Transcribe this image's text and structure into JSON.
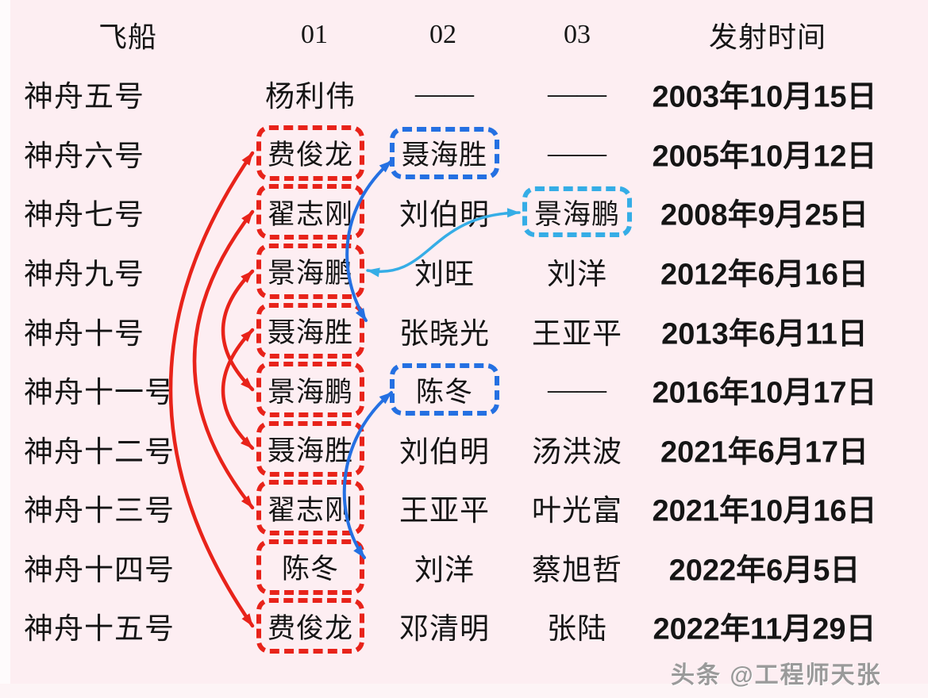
{
  "page": {
    "background": "#fdeef2",
    "watermark": "头条 @工程师天张"
  },
  "colors": {
    "red": "#e8231a",
    "blue": "#2470e2",
    "cyan": "#35ade6",
    "text": "#151515",
    "watermark_gray": "#9a9a9a"
  },
  "table": {
    "headers": [
      {
        "label": "飞船"
      },
      {
        "label": "01"
      },
      {
        "label": "02"
      },
      {
        "label": "03"
      },
      {
        "label": "发射时间"
      }
    ],
    "rows": [
      {
        "ship": "神舟五号",
        "c1": {
          "text": "杨利伟",
          "box": null
        },
        "c2": {
          "text": "——",
          "box": null
        },
        "c3": {
          "text": "——",
          "box": null
        },
        "date": "2003年10月15日"
      },
      {
        "ship": "神舟六号",
        "c1": {
          "text": "费俊龙",
          "box": "red"
        },
        "c2": {
          "text": "聂海胜",
          "box": "blue"
        },
        "c3": {
          "text": "——",
          "box": null
        },
        "date": "2005年10月12日"
      },
      {
        "ship": "神舟七号",
        "c1": {
          "text": "翟志刚",
          "box": "red"
        },
        "c2": {
          "text": "刘伯明",
          "box": null
        },
        "c3": {
          "text": "景海鹏",
          "box": "cyan"
        },
        "date": "2008年9月25日"
      },
      {
        "ship": "神舟九号",
        "c1": {
          "text": "景海鹏",
          "box": "red"
        },
        "c2": {
          "text": "刘旺",
          "box": null
        },
        "c3": {
          "text": "刘洋",
          "box": null
        },
        "date": "2012年6月16日"
      },
      {
        "ship": "神舟十号",
        "c1": {
          "text": "聂海胜",
          "box": "red"
        },
        "c2": {
          "text": "张晓光",
          "box": null
        },
        "c3": {
          "text": "王亚平",
          "box": null
        },
        "date": "2013年6月11日"
      },
      {
        "ship": "神舟十一号",
        "c1": {
          "text": "景海鹏",
          "box": "red"
        },
        "c2": {
          "text": "陈冬",
          "box": "blue"
        },
        "c3": {
          "text": "——",
          "box": null
        },
        "date": "2016年10月17日"
      },
      {
        "ship": "神舟十二号",
        "c1": {
          "text": "聂海胜",
          "box": "red"
        },
        "c2": {
          "text": "刘伯明",
          "box": null
        },
        "c3": {
          "text": "汤洪波",
          "box": null
        },
        "date": "2021年6月17日"
      },
      {
        "ship": "神舟十三号",
        "c1": {
          "text": "翟志刚",
          "box": "red"
        },
        "c2": {
          "text": "王亚平",
          "box": null
        },
        "c3": {
          "text": "叶光富",
          "box": null
        },
        "date": "2021年10月16日"
      },
      {
        "ship": "神舟十四号",
        "c1": {
          "text": "陈冬",
          "box": "red"
        },
        "c2": {
          "text": "刘洋",
          "box": null
        },
        "c3": {
          "text": "蔡旭哲",
          "box": null
        },
        "date": "2022年6月5日"
      },
      {
        "ship": "神舟十五号",
        "c1": {
          "text": "费俊龙",
          "box": "red"
        },
        "c2": {
          "text": "邓清明",
          "box": null
        },
        "c3": {
          "text": "张陆",
          "box": null
        },
        "date": "2022年11月29日"
      }
    ]
  },
  "links": [
    {
      "astronaut": "费俊龙",
      "between": [
        "神舟六号 01",
        "神舟十五号 01"
      ],
      "color": "red"
    },
    {
      "astronaut": "翟志刚",
      "between": [
        "神舟七号 01",
        "神舟十三号 01"
      ],
      "color": "red"
    },
    {
      "astronaut": "景海鹏",
      "between": [
        "神舟九号 01",
        "神舟十一号 01"
      ],
      "color": "red"
    },
    {
      "astronaut": "聂海胜",
      "between": [
        "神舟十号 01",
        "神舟十二号 01"
      ],
      "color": "red"
    },
    {
      "astronaut": "聂海胜",
      "between": [
        "神舟六号 02",
        "神舟十号 01"
      ],
      "color": "blue"
    },
    {
      "astronaut": "景海鹏",
      "between": [
        "神舟七号 03",
        "神舟九号 01"
      ],
      "color": "cyan"
    },
    {
      "astronaut": "陈冬",
      "between": [
        "神舟十一号 02",
        "神舟十四号 01"
      ],
      "color": "blue"
    }
  ]
}
